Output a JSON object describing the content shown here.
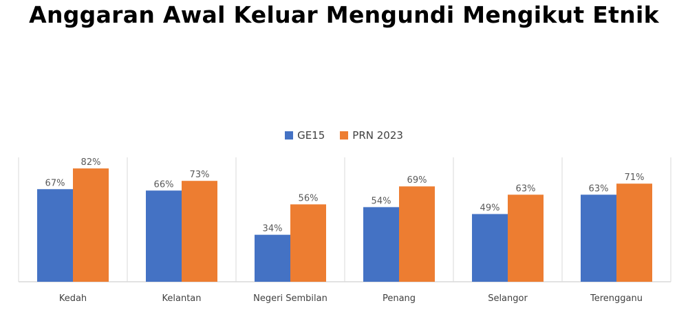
{
  "chart_data": {
    "type": "bar",
    "title": "Anggaran Awal Keluar Mengundi Mengikut Etnik",
    "categories": [
      "Kedah",
      "Kelantan",
      "Negeri Sembilan",
      "Penang",
      "Selangor",
      "Terengganu"
    ],
    "series": [
      {
        "name": "GE15",
        "color": "#4472C4",
        "values": [
          67,
          66,
          34,
          54,
          49,
          63
        ],
        "labels": [
          "67%",
          "66%",
          "34%",
          "54%",
          "49%",
          "63%"
        ]
      },
      {
        "name": "PRN 2023",
        "color": "#ED7D31",
        "values": [
          82,
          73,
          56,
          69,
          63,
          71
        ],
        "labels": [
          "82%",
          "73%",
          "56%",
          "69%",
          "63%",
          "71%"
        ]
      }
    ],
    "ylim": [
      0,
      90
    ],
    "legend_position": "top-center",
    "grid": false,
    "separators": "vertical"
  }
}
